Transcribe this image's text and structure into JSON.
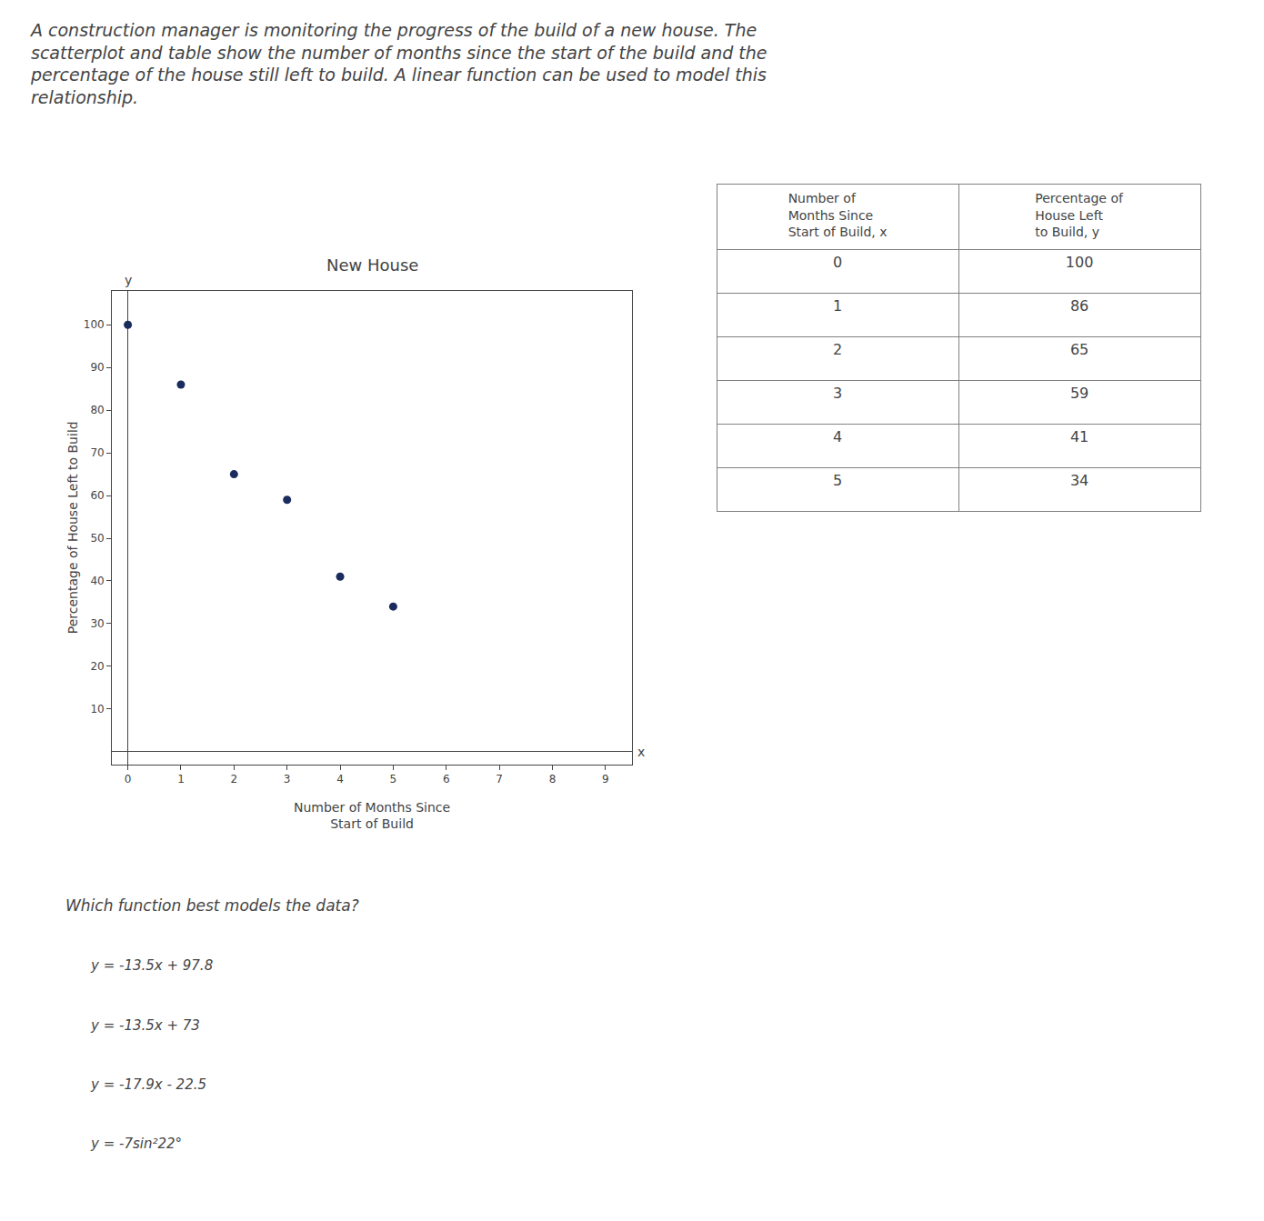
{
  "chart_data": {
    "type": "scatter",
    "title": "New House",
    "x_label": "Number of Months Since\nStart of Build",
    "y_label": "Percentage of House Left to Build",
    "x": [
      0,
      1,
      2,
      3,
      4,
      5
    ],
    "values": [
      100,
      86,
      65,
      59,
      41,
      34
    ],
    "xlim": [
      -0.3,
      9.5
    ],
    "ylim": [
      -3,
      108
    ],
    "xticks": [
      0,
      1,
      2,
      3,
      4,
      5,
      6,
      7,
      8,
      9
    ],
    "yticks": [
      10,
      20,
      30,
      40,
      50,
      60,
      70,
      80,
      90,
      100
    ],
    "color": "#1a2b5e",
    "marker": "circle",
    "grid": false,
    "annotations": [
      "x",
      "y"
    ]
  },
  "paragraph_lines": [
    "A construction manager is monitoring the progress of the build of a new house. The",
    "scatterplot and table show the number of months since the start of the build and the",
    "percentage of the house still left to build. A linear function can be used to model this",
    "relationship."
  ],
  "table": {
    "headers": [
      "Number of\nMonths Since\nStart of Build, x",
      "Percentage of\nHouse Left\nto Build, y"
    ],
    "columns": [
      [
        0,
        1,
        2,
        3,
        4,
        5
      ],
      [
        100,
        86,
        65,
        59,
        41,
        34
      ]
    ]
  },
  "question": "Which function best models the data?",
  "answer_choices": [
    "y = -13.5x + 97.8",
    "y = -13.5x + 73",
    "y = -17.9x - 22.5",
    "y = -7sin²22°"
  ]
}
